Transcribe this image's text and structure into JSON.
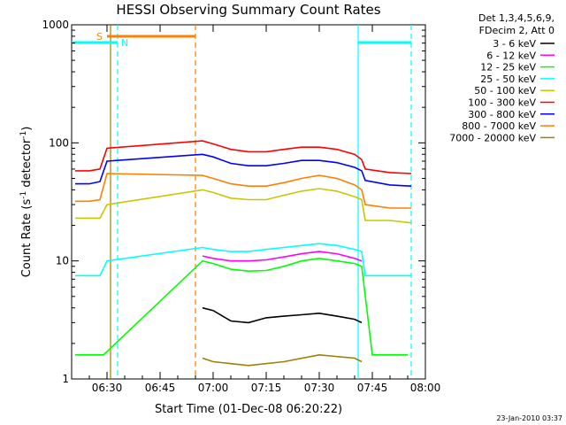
{
  "chart_data": {
    "type": "line",
    "title": "HESSI Observing Summary Count Rates",
    "xlabel": "Start Time (01-Dec-08 06:20:22)",
    "ylabel_main": "Count Rate (s",
    "ylabel_sup1": "-1",
    "ylabel_mid": " detector",
    "ylabel_sup2": "-1",
    "ylabel_end": ")",
    "y_scale": "log",
    "ylim": [
      1,
      1000
    ],
    "xlim": [
      "06:20",
      "08:00"
    ],
    "x_ticks": [
      "06:30",
      "06:45",
      "07:00",
      "07:15",
      "07:30",
      "07:45",
      "08:00"
    ],
    "y_ticks": [
      "1",
      "10",
      "100",
      "1000"
    ],
    "legend_header": [
      "Det 1,3,4,5,6,9,",
      "FDecim 2, Att 0"
    ],
    "legend_position": "right",
    "footer_date": "23-Jan-2010 03:37",
    "flags": [
      {
        "label": "S",
        "start": "06:30",
        "end": "06:55",
        "color": "#ff8000"
      },
      {
        "label": "N",
        "start": "06:20",
        "end": "06:33",
        "color": "#00ffff"
      },
      {
        "label": "",
        "start": "07:41",
        "end": "07:56",
        "color": "#00ffff"
      }
    ],
    "vlines": [
      {
        "time": "06:33",
        "color": "#00ffff",
        "style": "dashed"
      },
      {
        "time": "06:55",
        "color": "#ff8000",
        "style": "dashed"
      },
      {
        "time": "07:41",
        "color": "#00ffff",
        "style": "solid"
      },
      {
        "time": "07:56",
        "color": "#00ffff",
        "style": "dashed"
      },
      {
        "time": "06:31",
        "color": "#a08000",
        "style": "solid"
      }
    ],
    "series": [
      {
        "name": "3 - 6 keV",
        "color": "#000000",
        "points": [
          [
            "06:57",
            4
          ],
          [
            "07:00",
            3.8
          ],
          [
            "07:05",
            3.1
          ],
          [
            "07:10",
            3
          ],
          [
            "07:15",
            3.3
          ],
          [
            "07:20",
            3.4
          ],
          [
            "07:25",
            3.5
          ],
          [
            "07:30",
            3.6
          ],
          [
            "07:35",
            3.4
          ],
          [
            "07:40",
            3.2
          ],
          [
            "07:42",
            3.0
          ]
        ]
      },
      {
        "name": "6 - 12 keV",
        "color": "#ff00ff",
        "points": [
          [
            "06:57",
            11
          ],
          [
            "07:00",
            10.5
          ],
          [
            "07:05",
            10
          ],
          [
            "07:10",
            10
          ],
          [
            "07:15",
            10.2
          ],
          [
            "07:20",
            10.8
          ],
          [
            "07:25",
            11.5
          ],
          [
            "07:30",
            12
          ],
          [
            "07:35",
            11.5
          ],
          [
            "07:40",
            10.5
          ],
          [
            "07:42",
            10
          ]
        ]
      },
      {
        "name": "12 - 25 keV",
        "color": "#00ff00",
        "points": [
          [
            "06:21",
            1.6
          ],
          [
            "06:25",
            1.6
          ],
          [
            "06:29",
            1.6
          ],
          [
            "06:57",
            10
          ],
          [
            "07:00",
            9.5
          ],
          [
            "07:05",
            8.5
          ],
          [
            "07:10",
            8.2
          ],
          [
            "07:15",
            8.3
          ],
          [
            "07:20",
            9
          ],
          [
            "07:25",
            10
          ],
          [
            "07:30",
            10.5
          ],
          [
            "07:35",
            10
          ],
          [
            "07:40",
            9.5
          ],
          [
            "07:42",
            9
          ],
          [
            "07:45",
            1.6
          ],
          [
            "07:50",
            1.6
          ],
          [
            "07:55",
            1.6
          ]
        ]
      },
      {
        "name": "25 - 50 keV",
        "color": "#00ffff",
        "points": [
          [
            "06:21",
            7.5
          ],
          [
            "06:25",
            7.5
          ],
          [
            "06:28",
            7.5
          ],
          [
            "06:30",
            10
          ],
          [
            "06:57",
            13
          ],
          [
            "07:00",
            12.5
          ],
          [
            "07:05",
            12
          ],
          [
            "07:10",
            12
          ],
          [
            "07:15",
            12.5
          ],
          [
            "07:20",
            13
          ],
          [
            "07:25",
            13.5
          ],
          [
            "07:30",
            14
          ],
          [
            "07:35",
            13.5
          ],
          [
            "07:40",
            12.5
          ],
          [
            "07:42",
            12
          ],
          [
            "07:43",
            7.5
          ],
          [
            "07:50",
            7.5
          ],
          [
            "07:56",
            7.5
          ]
        ]
      },
      {
        "name": "50 - 100 keV",
        "color": "#c8c800",
        "points": [
          [
            "06:21",
            23
          ],
          [
            "06:25",
            23
          ],
          [
            "06:28",
            23
          ],
          [
            "06:30",
            30
          ],
          [
            "06:57",
            40
          ],
          [
            "07:00",
            38
          ],
          [
            "07:05",
            34
          ],
          [
            "07:10",
            33
          ],
          [
            "07:15",
            33
          ],
          [
            "07:20",
            36
          ],
          [
            "07:25",
            39
          ],
          [
            "07:30",
            41
          ],
          [
            "07:35",
            39
          ],
          [
            "07:40",
            35
          ],
          [
            "07:42",
            33
          ],
          [
            "07:43",
            22
          ],
          [
            "07:50",
            22
          ],
          [
            "07:56",
            21
          ]
        ]
      },
      {
        "name": "100 - 300 keV",
        "color": "#ff0000",
        "points": [
          [
            "06:21",
            58
          ],
          [
            "06:25",
            58
          ],
          [
            "06:28",
            60
          ],
          [
            "06:30",
            90
          ],
          [
            "06:57",
            104
          ],
          [
            "07:00",
            98
          ],
          [
            "07:05",
            88
          ],
          [
            "07:10",
            84
          ],
          [
            "07:15",
            84
          ],
          [
            "07:20",
            88
          ],
          [
            "07:25",
            92
          ],
          [
            "07:30",
            92
          ],
          [
            "07:35",
            88
          ],
          [
            "07:40",
            80
          ],
          [
            "07:42",
            72
          ],
          [
            "07:43",
            60
          ],
          [
            "07:50",
            56
          ],
          [
            "07:56",
            55
          ]
        ]
      },
      {
        "name": "300 - 800 keV",
        "color": "#0000ff",
        "points": [
          [
            "06:21",
            45
          ],
          [
            "06:25",
            45
          ],
          [
            "06:28",
            47
          ],
          [
            "06:30",
            70
          ],
          [
            "06:57",
            80
          ],
          [
            "07:00",
            76
          ],
          [
            "07:05",
            67
          ],
          [
            "07:10",
            64
          ],
          [
            "07:15",
            64
          ],
          [
            "07:20",
            67
          ],
          [
            "07:25",
            71
          ],
          [
            "07:30",
            71
          ],
          [
            "07:35",
            68
          ],
          [
            "07:40",
            62
          ],
          [
            "07:42",
            58
          ],
          [
            "07:43",
            48
          ],
          [
            "07:50",
            44
          ],
          [
            "07:56",
            43
          ]
        ]
      },
      {
        "name": "800 - 7000 keV",
        "color": "#ff8000",
        "points": [
          [
            "06:21",
            32
          ],
          [
            "06:25",
            32
          ],
          [
            "06:28",
            33
          ],
          [
            "06:30",
            55
          ],
          [
            "06:57",
            53
          ],
          [
            "07:00",
            50
          ],
          [
            "07:05",
            45
          ],
          [
            "07:10",
            43
          ],
          [
            "07:15",
            43
          ],
          [
            "07:20",
            46
          ],
          [
            "07:25",
            50
          ],
          [
            "07:30",
            53
          ],
          [
            "07:35",
            50
          ],
          [
            "07:40",
            44
          ],
          [
            "07:42",
            40
          ],
          [
            "07:43",
            30
          ],
          [
            "07:50",
            28
          ],
          [
            "07:56",
            28
          ]
        ]
      },
      {
        "name": "7000 - 20000 keV",
        "color": "#a08000",
        "points": [
          [
            "06:57",
            1.5
          ],
          [
            "07:00",
            1.4
          ],
          [
            "07:10",
            1.3
          ],
          [
            "07:20",
            1.4
          ],
          [
            "07:30",
            1.6
          ],
          [
            "07:40",
            1.5
          ],
          [
            "07:42",
            1.4
          ]
        ]
      }
    ]
  }
}
